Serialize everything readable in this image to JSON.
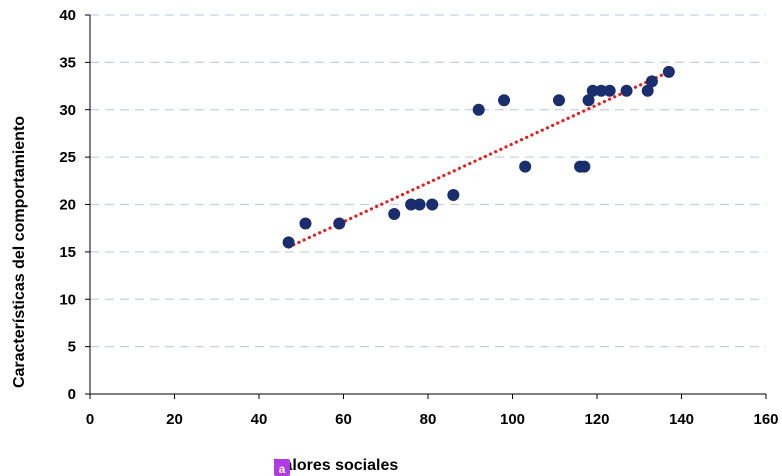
{
  "chart_data": {
    "type": "scatter",
    "xlabel": "Valores sociales",
    "ylabel": "Características del comportamiento",
    "xlim": [
      0,
      160
    ],
    "ylim": [
      0,
      40
    ],
    "x_ticks": [
      0,
      20,
      40,
      60,
      80,
      100,
      120,
      140,
      160
    ],
    "y_ticks": [
      0,
      5,
      10,
      15,
      20,
      25,
      30,
      35,
      40
    ],
    "grid": "horizontal-dashed",
    "series": [
      {
        "points": [
          {
            "x": 47,
            "y": 16
          },
          {
            "x": 51,
            "y": 18
          },
          {
            "x": 59,
            "y": 18
          },
          {
            "x": 72,
            "y": 19
          },
          {
            "x": 76,
            "y": 20
          },
          {
            "x": 78,
            "y": 20
          },
          {
            "x": 81,
            "y": 20
          },
          {
            "x": 86,
            "y": 21
          },
          {
            "x": 92,
            "y": 30
          },
          {
            "x": 98,
            "y": 31
          },
          {
            "x": 103,
            "y": 24
          },
          {
            "x": 111,
            "y": 31
          },
          {
            "x": 116,
            "y": 24
          },
          {
            "x": 117,
            "y": 24
          },
          {
            "x": 118,
            "y": 31
          },
          {
            "x": 119,
            "y": 32
          },
          {
            "x": 121,
            "y": 32
          },
          {
            "x": 123,
            "y": 32
          },
          {
            "x": 127,
            "y": 32
          },
          {
            "x": 132,
            "y": 32
          },
          {
            "x": 133,
            "y": 33
          },
          {
            "x": 137,
            "y": 34
          }
        ]
      }
    ],
    "trendline": {
      "style": "dotted",
      "from": {
        "x": 47,
        "y": 15.5
      },
      "to": {
        "x": 137,
        "y": 34
      }
    },
    "badge": "a"
  },
  "colors": {
    "marker": "#1a2e6e",
    "trendline": "#e81c1c",
    "grid": "#c8d0e0",
    "axis": "#000000",
    "badge": "#b13be0"
  }
}
